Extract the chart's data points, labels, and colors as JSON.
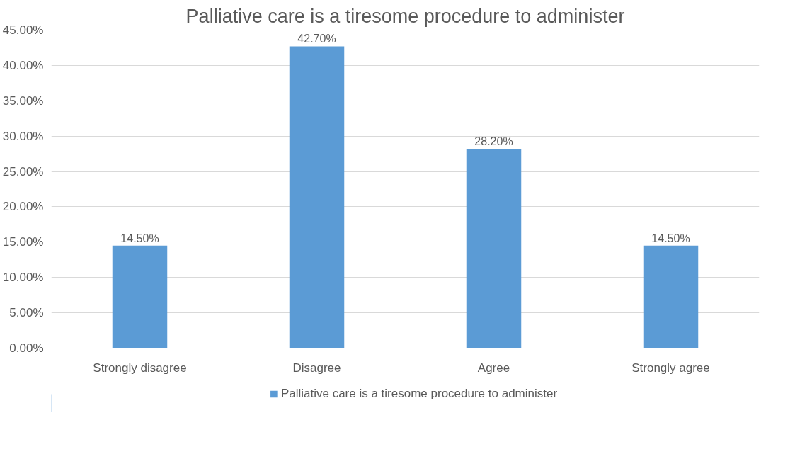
{
  "chart_data": {
    "type": "bar",
    "title": "Palliative care is a tiresome procedure to administer",
    "categories": [
      "Strongly disagree",
      "Disagree",
      "Agree",
      "Strongly agree"
    ],
    "series": [
      {
        "name": "Palliative care is a tiresome procedure to administer",
        "color": "#5b9bd5",
        "values": [
          14.5,
          42.7,
          28.2,
          14.5
        ],
        "value_labels": [
          "14.50%",
          "42.70%",
          "28.20%",
          "14.50%"
        ]
      }
    ],
    "ylim": [
      0,
      45
    ],
    "yticks": [
      {
        "value": 0,
        "label": "0.00%"
      },
      {
        "value": 5,
        "label": "5.00%"
      },
      {
        "value": 10,
        "label": "10.00%"
      },
      {
        "value": 15,
        "label": "15.00%"
      },
      {
        "value": 20,
        "label": "20.00%"
      },
      {
        "value": 25,
        "label": "25.00%"
      },
      {
        "value": 30,
        "label": "30.00%"
      },
      {
        "value": 35,
        "label": "35.00%"
      },
      {
        "value": 40,
        "label": "40.00%"
      },
      {
        "value": 45,
        "label": "45.00%"
      }
    ],
    "grid": "y",
    "legend": "bottom"
  }
}
